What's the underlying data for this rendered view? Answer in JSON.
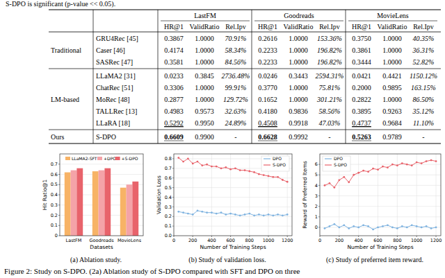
{
  "header_text": "S-DPO is significant (p-value << 0.05).",
  "table": {
    "datasets": [
      "LastFM",
      "Goodreads",
      "MovieLens"
    ],
    "metrics": [
      "HR@1",
      "ValidRatio",
      "Rel.Ipv"
    ],
    "groups": [
      {
        "name": "Traditional",
        "rows": [
          {
            "model": "GRU4Rec [45]",
            "cells": [
              "0.3867",
              "1.0000",
              "70.91%",
              "0.2616",
              "1.0000",
              "153.36%",
              "0.3750",
              "1.0000",
              "40.35%"
            ]
          },
          {
            "model": "Caser [46]",
            "cells": [
              "0.4174",
              "1.0000",
              "58.34%",
              "0.2233",
              "1.0000",
              "196.82%",
              "0.3861",
              "1.0000",
              "36.31%"
            ]
          },
          {
            "model": "SASRec [47]",
            "cells": [
              "0.3581",
              "1.0000",
              "84.56%",
              "0.2233",
              "1.0000",
              "196.82%",
              "0.3444",
              "1.0000",
              "52.82%"
            ]
          }
        ]
      },
      {
        "name": "LM-based",
        "rows": [
          {
            "model": "LLaMA2 [31]",
            "cells": [
              "0.0233",
              "0.3845",
              "2736.48%",
              "0.0246",
              "0.3443",
              "2594.31%",
              "0.0421",
              "0.4421",
              "1150.12%"
            ]
          },
          {
            "model": "ChatRec [51]",
            "cells": [
              "0.3306",
              "1.0000",
              "99.91%",
              "0.3770",
              "1.0000",
              "75.81%",
              "0.2000",
              "0.9895",
              "163.15%"
            ]
          },
          {
            "model": "MoRec [48]",
            "cells": [
              "0.2877",
              "1.0000",
              "129.72%",
              "0.1652",
              "1.0000",
              "301.21%",
              "0.2822",
              "1.0000",
              "86.50%"
            ]
          },
          {
            "model": "TALLRec [13]",
            "cells": [
              "0.4983",
              "0.9573",
              "32.63%",
              "0.4180",
              "0.9836",
              "58.56%",
              "0.3895",
              "0.9263",
              "35.12%"
            ]
          },
          {
            "model": "LLaRA [18]",
            "hr_style": "underline",
            "cells": [
              "0.5292",
              "0.9950",
              "24.89%",
              "0.4508",
              "0.9918",
              "47.03%",
              "0.4737",
              "0.9684",
              "11.10%"
            ]
          }
        ]
      },
      {
        "name": "Ours",
        "rows": [
          {
            "model": "S-DPO",
            "hr_style": "bold",
            "cells": [
              "0.6609",
              "0.9900",
              "-",
              "0.6628",
              "0.9992",
              "-",
              "0.5263",
              "0.9789",
              "-"
            ]
          }
        ]
      }
    ]
  },
  "chart_data": [
    {
      "type": "bar",
      "x_label": "Datasets",
      "y_label": "Hit Ratio@1",
      "caption": "(a) Ablation study.",
      "categories": [
        "LastFM",
        "Goodreads",
        "MovieLens"
      ],
      "series": [
        {
          "name": "LLaMA2-SFT",
          "color": "#f7b366",
          "values": [
            0.62,
            0.63,
            0.47
          ]
        },
        {
          "name": "+DPO",
          "color": "#f4a3a8",
          "values": [
            0.64,
            0.64,
            0.5
          ]
        },
        {
          "name": "+S-DPO",
          "color": "#e8636b",
          "values": [
            0.66,
            0.66,
            0.53
          ]
        }
      ],
      "ylim": [
        0,
        0.8
      ],
      "yticks": [
        0,
        0.1,
        0.2,
        0.3,
        0.4,
        0.5,
        0.6,
        0.7
      ],
      "grid": true,
      "legend": "top"
    },
    {
      "type": "line",
      "x_label": "Number of Training Steps",
      "y_label": "Validation Loss",
      "caption": "(b) Study of validation loss.",
      "x": [
        50,
        100,
        150,
        200,
        250,
        300,
        350,
        400,
        450,
        500,
        550,
        600,
        650,
        700,
        750,
        800,
        850,
        900,
        950,
        1000,
        1050,
        1100,
        1150,
        1200
      ],
      "series": [
        {
          "name": "DPO",
          "color": "#7fb3e0",
          "marker": "circle",
          "values": [
            0.25,
            0.24,
            0.23,
            0.22,
            0.26,
            0.25,
            0.24,
            0.24,
            0.23,
            0.24,
            0.22,
            0.23,
            0.22,
            0.21,
            0.22,
            0.23,
            0.21,
            0.22,
            0.21,
            0.22,
            0.21,
            0.22,
            0.21,
            0.22
          ]
        },
        {
          "name": "S-DPO",
          "color": "#e8636b",
          "marker": "circle",
          "values": [
            0.81,
            0.77,
            0.8,
            0.75,
            0.77,
            0.73,
            0.74,
            0.72,
            0.72,
            0.7,
            0.71,
            0.69,
            0.7,
            0.68,
            0.68,
            0.67,
            0.66,
            0.64,
            0.63,
            0.62,
            0.61,
            0.61,
            0.58,
            0.56
          ]
        }
      ],
      "xlim": [
        0,
        1250
      ],
      "xticks": [
        0,
        200,
        400,
        600,
        800,
        1000,
        1200
      ],
      "ylim": [
        0,
        0.85
      ],
      "yticks": [
        {
          "value": 0,
          "label": "0.0"
        },
        0.1,
        0.2,
        0.3,
        0.4,
        0.5,
        0.6,
        0.7,
        0.8
      ],
      "grid": true,
      "legend": "upper right"
    },
    {
      "type": "line",
      "x_label": "Number of Training Steps",
      "y_label": "Reward of Preferred Items",
      "caption": "(c) Study of preferred item reward.",
      "x": [
        50,
        100,
        150,
        200,
        250,
        300,
        350,
        400,
        450,
        500,
        550,
        600,
        650,
        700,
        750,
        800,
        850,
        900,
        950,
        1000,
        1050,
        1100,
        1150,
        1200
      ],
      "series": [
        {
          "name": "DPO",
          "color": "#7fb3e0",
          "marker": "circle",
          "values": [
            -0.1,
            0.1,
            0.3,
            0.0,
            0.2,
            -0.1,
            0.1,
            0.0,
            0.2,
            0.1,
            -0.2,
            0.0,
            0.1,
            0.2,
            0.0,
            -0.1,
            0.1,
            0.0,
            0.2,
            0.1,
            0.0,
            0.1,
            -0.1,
            0.0
          ]
        },
        {
          "name": "S-DPO",
          "color": "#e8636b",
          "marker": "circle",
          "values": [
            4.0,
            4.2,
            3.8,
            4.5,
            4.8,
            4.3,
            5.0,
            5.2,
            5.4,
            5.3,
            5.6,
            5.5,
            5.8,
            5.7,
            6.0,
            5.9,
            6.1,
            6.0,
            5.9,
            6.2,
            6.1,
            6.3,
            6.4,
            6.3
          ]
        }
      ],
      "xlim": [
        0,
        1250
      ],
      "xticks": [
        0,
        200,
        400,
        600,
        800,
        1000,
        1200
      ],
      "ylim": [
        -0.8,
        7
      ],
      "yticks": [
        0,
        1,
        2,
        3,
        4,
        5,
        6
      ],
      "grid": true,
      "legend": "upper left"
    }
  ],
  "figure_caption": "Figure 2: Study on S-DPO. (2a) Ablation study of S-DPO compared with SFT and DPO on three"
}
